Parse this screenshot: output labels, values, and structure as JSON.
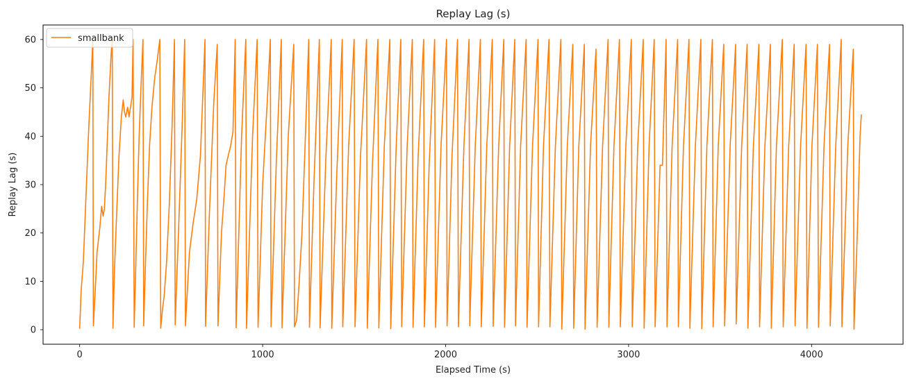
{
  "chart_data": {
    "type": "line",
    "title": "Replay Lag (s)",
    "xlabel": "Elapsed Time (s)",
    "ylabel": "Replay Lag (s)",
    "xlim": [
      -200,
      4500
    ],
    "ylim": [
      -3,
      63
    ],
    "x_ticks": [
      0,
      1000,
      2000,
      3000,
      4000
    ],
    "y_ticks": [
      0,
      10,
      20,
      30,
      40,
      50,
      60
    ],
    "grid": false,
    "legend_position": "top-left",
    "series": [
      {
        "name": "smallbank",
        "color": "#ff7f0e",
        "points": [
          [
            0,
            0.2
          ],
          [
            8,
            8
          ],
          [
            20,
            14
          ],
          [
            35,
            28
          ],
          [
            50,
            42
          ],
          [
            65,
            54
          ],
          [
            72,
            60
          ],
          [
            75,
            0.8
          ],
          [
            85,
            8
          ],
          [
            95,
            16
          ],
          [
            110,
            21
          ],
          [
            120,
            25.5
          ],
          [
            128,
            23.5
          ],
          [
            135,
            25
          ],
          [
            142,
            30
          ],
          [
            150,
            38
          ],
          [
            160,
            48
          ],
          [
            172,
            57
          ],
          [
            178,
            60
          ],
          [
            182,
            0.3
          ],
          [
            190,
            12
          ],
          [
            200,
            22
          ],
          [
            215,
            36
          ],
          [
            228,
            44
          ],
          [
            238,
            47.5
          ],
          [
            245,
            45
          ],
          [
            252,
            44
          ],
          [
            262,
            46
          ],
          [
            270,
            44
          ],
          [
            278,
            46
          ],
          [
            286,
            48
          ],
          [
            292,
            60
          ],
          [
            298,
            0.5
          ],
          [
            306,
            12
          ],
          [
            315,
            26
          ],
          [
            325,
            40
          ],
          [
            335,
            50
          ],
          [
            346,
            60
          ],
          [
            350,
            0.8
          ],
          [
            360,
            14
          ],
          [
            370,
            26
          ],
          [
            382,
            38
          ],
          [
            395,
            46
          ],
          [
            410,
            52
          ],
          [
            425,
            56
          ],
          [
            438,
            60
          ],
          [
            443,
            0.3
          ],
          [
            452,
            4
          ],
          [
            462,
            7
          ],
          [
            475,
            14
          ],
          [
            490,
            26
          ],
          [
            505,
            42
          ],
          [
            518,
            60
          ],
          [
            522,
            1
          ],
          [
            540,
            20
          ],
          [
            560,
            42
          ],
          [
            574,
            60
          ],
          [
            578,
            0.8
          ],
          [
            600,
            16
          ],
          [
            620,
            22
          ],
          [
            640,
            27
          ],
          [
            660,
            36
          ],
          [
            685,
            60
          ],
          [
            688,
            0.7
          ],
          [
            710,
            25
          ],
          [
            733,
            47
          ],
          [
            752,
            59
          ],
          [
            756,
            0.8
          ],
          [
            775,
            20
          ],
          [
            790,
            28
          ],
          [
            800,
            34
          ],
          [
            812,
            36
          ],
          [
            825,
            38
          ],
          [
            838,
            41
          ],
          [
            850,
            60
          ],
          [
            855,
            0.4
          ],
          [
            885,
            40
          ],
          [
            908,
            60
          ],
          [
            912,
            0.3
          ],
          [
            945,
            40
          ],
          [
            970,
            60
          ],
          [
            975,
            0.5
          ],
          [
            1000,
            30
          ],
          [
            1025,
            47
          ],
          [
            1042,
            60
          ],
          [
            1046,
            0.6
          ],
          [
            1075,
            35
          ],
          [
            1102,
            60
          ],
          [
            1106,
            0.4
          ],
          [
            1140,
            40
          ],
          [
            1170,
            59
          ],
          [
            1174,
            0.6
          ],
          [
            1186,
            2
          ],
          [
            1200,
            10
          ],
          [
            1215,
            20
          ],
          [
            1230,
            36
          ],
          [
            1252,
            60
          ],
          [
            1256,
            0.5
          ],
          [
            1280,
            30
          ],
          [
            1310,
            60
          ],
          [
            1314,
            0.4
          ],
          [
            1345,
            35
          ],
          [
            1375,
            60
          ],
          [
            1378,
            0.3
          ],
          [
            1405,
            32
          ],
          [
            1435,
            60
          ],
          [
            1438,
            0.6
          ],
          [
            1470,
            38
          ],
          [
            1500,
            60
          ],
          [
            1505,
            0.6
          ],
          [
            1535,
            36
          ],
          [
            1568,
            60
          ],
          [
            1572,
            0.3
          ],
          [
            1600,
            34
          ],
          [
            1630,
            60
          ],
          [
            1635,
            0.4
          ],
          [
            1665,
            38
          ],
          [
            1695,
            60
          ],
          [
            1700,
            0.2
          ],
          [
            1730,
            38
          ],
          [
            1755,
            60
          ],
          [
            1760,
            0.6
          ],
          [
            1790,
            38
          ],
          [
            1818,
            60
          ],
          [
            1822,
            0.5
          ],
          [
            1850,
            36
          ],
          [
            1880,
            60
          ],
          [
            1884,
            0.6
          ],
          [
            1910,
            34
          ],
          [
            1940,
            60
          ],
          [
            1945,
            0.5
          ],
          [
            1975,
            38
          ],
          [
            2005,
            60
          ],
          [
            2008,
            0.8
          ],
          [
            2035,
            36
          ],
          [
            2065,
            60
          ],
          [
            2070,
            0.6
          ],
          [
            2100,
            38
          ],
          [
            2128,
            60
          ],
          [
            2132,
            0.8
          ],
          [
            2162,
            38
          ],
          [
            2190,
            60
          ],
          [
            2195,
            0.6
          ],
          [
            2225,
            38
          ],
          [
            2255,
            60
          ],
          [
            2260,
            0.7
          ],
          [
            2290,
            38
          ],
          [
            2318,
            60
          ],
          [
            2322,
            0.5
          ],
          [
            2350,
            38
          ],
          [
            2378,
            60
          ],
          [
            2382,
            0.8
          ],
          [
            2410,
            38
          ],
          [
            2440,
            60
          ],
          [
            2445,
            0.5
          ],
          [
            2475,
            38
          ],
          [
            2505,
            60
          ],
          [
            2508,
            0.6
          ],
          [
            2535,
            38
          ],
          [
            2565,
            60
          ],
          [
            2570,
            0.6
          ],
          [
            2600,
            38
          ],
          [
            2630,
            60
          ],
          [
            2635,
            0.1
          ],
          [
            2665,
            38
          ],
          [
            2695,
            59
          ],
          [
            2700,
            0.3
          ],
          [
            2728,
            38
          ],
          [
            2758,
            59
          ],
          [
            2762,
            0.1
          ],
          [
            2792,
            38
          ],
          [
            2822,
            58
          ],
          [
            2828,
            0.5
          ],
          [
            2858,
            38
          ],
          [
            2888,
            60
          ],
          [
            2892,
            0.5
          ],
          [
            2920,
            38
          ],
          [
            2950,
            60
          ],
          [
            2955,
            0.6
          ],
          [
            2985,
            38
          ],
          [
            3015,
            60
          ],
          [
            3020,
            0.6
          ],
          [
            3050,
            38
          ],
          [
            3080,
            60
          ],
          [
            3085,
            0.3
          ],
          [
            3112,
            38
          ],
          [
            3140,
            60
          ],
          [
            3145,
            0.6
          ],
          [
            3172,
            34
          ],
          [
            3185,
            34
          ],
          [
            3205,
            60
          ],
          [
            3210,
            0.6
          ],
          [
            3238,
            38
          ],
          [
            3268,
            60
          ],
          [
            3272,
            0.6
          ],
          [
            3300,
            38
          ],
          [
            3330,
            60
          ],
          [
            3335,
            0.3
          ],
          [
            3365,
            38
          ],
          [
            3395,
            60
          ],
          [
            3400,
            0.2
          ],
          [
            3428,
            38
          ],
          [
            3458,
            60
          ],
          [
            3462,
            0.6
          ],
          [
            3490,
            38
          ],
          [
            3520,
            59
          ],
          [
            3525,
            0.8
          ],
          [
            3555,
            38
          ],
          [
            3585,
            59
          ],
          [
            3588,
            1.2
          ],
          [
            3618,
            38
          ],
          [
            3648,
            59
          ],
          [
            3652,
            0.3
          ],
          [
            3682,
            38
          ],
          [
            3712,
            59
          ],
          [
            3716,
            0.6
          ],
          [
            3745,
            38
          ],
          [
            3775,
            59
          ],
          [
            3780,
            0.3
          ],
          [
            3808,
            38
          ],
          [
            3840,
            60
          ],
          [
            3845,
            0.6
          ],
          [
            3875,
            38
          ],
          [
            3905,
            59
          ],
          [
            3910,
            0.8
          ],
          [
            3940,
            38
          ],
          [
            3970,
            59
          ],
          [
            3975,
            0.3
          ],
          [
            4002,
            38
          ],
          [
            4032,
            59
          ],
          [
            4038,
            0.5
          ],
          [
            4068,
            38
          ],
          [
            4098,
            59
          ],
          [
            4102,
            0.8
          ],
          [
            4132,
            38
          ],
          [
            4162,
            60
          ],
          [
            4166,
            0.6
          ],
          [
            4198,
            38
          ],
          [
            4228,
            58
          ],
          [
            4232,
            0.1
          ],
          [
            4250,
            20
          ],
          [
            4265,
            40
          ],
          [
            4272,
            44.5
          ]
        ]
      }
    ]
  }
}
